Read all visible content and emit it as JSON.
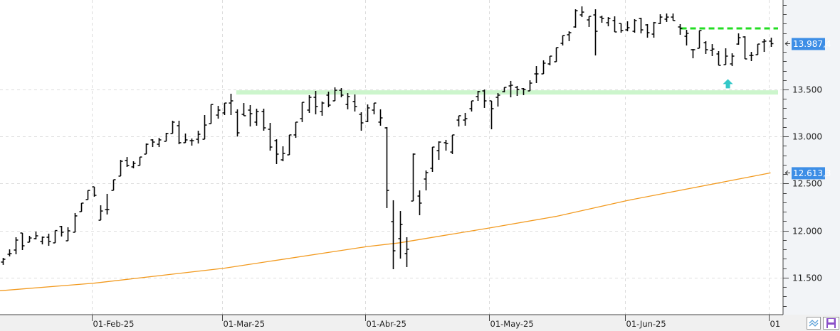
{
  "chart_data": {
    "type": "ohlc",
    "title": "",
    "xlabel": "",
    "ylabel": "",
    "ylim": [
      11200,
      14450
    ],
    "grid": true,
    "x_tick_labels": [
      "01-Feb-25",
      "01-Mar-25",
      "01-Abr-25",
      "01-May-25",
      "01-Jun-25",
      "01"
    ],
    "x_tick_bar_index": [
      15,
      35,
      57,
      76,
      97,
      119
    ],
    "y_ticks": [
      11500,
      12000,
      12500,
      13000,
      13500
    ],
    "y_tick_labels": [
      "11.500",
      "12.000",
      "12.500",
      "13.000",
      "13.500"
    ],
    "bars": [
      [
        11665,
        11710,
        11635,
        11695
      ],
      [
        11748,
        11800,
        11725,
        11755
      ],
      [
        11793,
        11929,
        11748,
        11899
      ],
      [
        11974,
        11974,
        11793,
        11838
      ],
      [
        11876,
        11944,
        11876,
        11921
      ],
      [
        11914,
        11989,
        11906,
        11944
      ],
      [
        11884,
        11937,
        11853,
        11929
      ],
      [
        11929,
        11967,
        11838,
        11884
      ],
      [
        11869,
        12000,
        11869,
        12000
      ],
      [
        12042,
        12050,
        11937,
        11982
      ],
      [
        11891,
        12035,
        11891,
        11997
      ],
      [
        11982,
        12186,
        11982,
        12156
      ],
      [
        12201,
        12292,
        12201,
        12292
      ],
      [
        12329,
        12427,
        12329,
        12427
      ],
      [
        12465,
        12465,
        12360,
        12375
      ],
      [
        12110,
        12269,
        12110,
        12208
      ],
      [
        12223,
        12390,
        12171,
        12223
      ],
      [
        12427,
        12541,
        12427,
        12541
      ],
      [
        12579,
        12752,
        12579,
        12737
      ],
      [
        12745,
        12782,
        12677,
        12692
      ],
      [
        12677,
        12737,
        12662,
        12714
      ],
      [
        12692,
        12782,
        12692,
        12782
      ],
      [
        12813,
        12926,
        12813,
        12918
      ],
      [
        12964,
        12971,
        12888,
        12941
      ],
      [
        12918,
        12986,
        12888,
        12964
      ],
      [
        12949,
        13039,
        12949,
        13032
      ],
      [
        13032,
        13168,
        13032,
        13153
      ],
      [
        13115,
        13168,
        12918,
        12934
      ],
      [
        12934,
        13032,
        12934,
        12964
      ],
      [
        12956,
        12979,
        12903,
        12956
      ],
      [
        12971,
        13062,
        12926,
        13024
      ],
      [
        12971,
        13228,
        12971,
        13122
      ],
      [
        13137,
        13341,
        13137,
        13341
      ],
      [
        13228,
        13326,
        13190,
        13281
      ],
      [
        13251,
        13356,
        13228,
        13356
      ],
      [
        13356,
        13455,
        13228,
        13379
      ],
      [
        13258,
        13289,
        13000,
        13039
      ],
      [
        13236,
        13356,
        13221,
        13221
      ],
      [
        13281,
        13334,
        13107,
        13243
      ],
      [
        13153,
        13296,
        13115,
        13266
      ],
      [
        13266,
        13296,
        13062,
        13092
      ],
      [
        13077,
        13145,
        12850,
        12888
      ],
      [
        12956,
        12971,
        12707,
        12813
      ],
      [
        12752,
        12896,
        12737,
        12820
      ],
      [
        12805,
        13017,
        12805,
        13017
      ],
      [
        13017,
        13153,
        12986,
        13153
      ],
      [
        13190,
        13364,
        13153,
        13364
      ],
      [
        13281,
        13440,
        13251,
        13417
      ],
      [
        13417,
        13485,
        13236,
        13319
      ],
      [
        13266,
        13372,
        13221,
        13356
      ],
      [
        13440,
        13477,
        13311,
        13334
      ],
      [
        13379,
        13523,
        13379,
        13492
      ],
      [
        13492,
        13515,
        13417,
        13440
      ],
      [
        13341,
        13462,
        13289,
        13425
      ],
      [
        13372,
        13447,
        13266,
        13319
      ],
      [
        13236,
        13258,
        13062,
        13145
      ],
      [
        13160,
        13341,
        13153,
        13304
      ],
      [
        13281,
        13356,
        13236,
        13356
      ],
      [
        13153,
        13289,
        13115,
        13198
      ],
      [
        13092,
        13100,
        12239,
        12427
      ],
      [
        12095,
        12322,
        11589,
        11785
      ],
      [
        11914,
        12208,
        11702,
        12065
      ],
      [
        11755,
        11929,
        11612,
        11801
      ],
      [
        12314,
        12820,
        12314,
        12813
      ],
      [
        12367,
        12427,
        12163,
        12292
      ],
      [
        12548,
        12639,
        12427,
        12616
      ],
      [
        12662,
        12888,
        12624,
        12888
      ],
      [
        12850,
        12949,
        12752,
        12941
      ],
      [
        12934,
        12964,
        12850,
        12926
      ],
      [
        12835,
        13017,
        12813,
        13017
      ],
      [
        13175,
        13221,
        13107,
        13221
      ],
      [
        13175,
        13251,
        13115,
        13190
      ],
      [
        13296,
        13379,
        13266,
        13379
      ],
      [
        13425,
        13485,
        13379,
        13477
      ],
      [
        13485,
        13500,
        13304,
        13379
      ],
      [
        13379,
        13379,
        13077,
        13296
      ],
      [
        13417,
        13462,
        13319,
        13440
      ],
      [
        13477,
        13523,
        13470,
        13523
      ],
      [
        13538,
        13591,
        13417,
        13545
      ],
      [
        13523,
        13538,
        13432,
        13500
      ],
      [
        13508,
        13515,
        13440,
        13500
      ],
      [
        13485,
        13598,
        13485,
        13568
      ],
      [
        13666,
        13749,
        13568,
        13666
      ],
      [
        13666,
        13810,
        13666,
        13780
      ],
      [
        13772,
        13855,
        13757,
        13855
      ],
      [
        13795,
        13946,
        13795,
        13946
      ],
      [
        13991,
        14074,
        13968,
        14074
      ],
      [
        14082,
        14119,
        14014,
        14104
      ],
      [
        14165,
        14353,
        14157,
        14338
      ],
      [
        14293,
        14384,
        14270,
        14323
      ],
      [
        14240,
        14278,
        14165,
        14278
      ],
      [
        14293,
        14353,
        13862,
        14119
      ],
      [
        14270,
        14285,
        14210,
        14255
      ],
      [
        14210,
        14270,
        14172,
        14255
      ],
      [
        14233,
        14278,
        14112,
        14112
      ],
      [
        14202,
        14202,
        14104,
        14127
      ],
      [
        14134,
        14225,
        14119,
        14157
      ],
      [
        14119,
        14248,
        14104,
        14233
      ],
      [
        14255,
        14263,
        14097,
        14134
      ],
      [
        14187,
        14195,
        14051,
        14104
      ],
      [
        14089,
        14218,
        14051,
        14210
      ],
      [
        14202,
        14300,
        14195,
        14270
      ],
      [
        14248,
        14308,
        14218,
        14270
      ],
      [
        14270,
        14308,
        14233,
        14233
      ],
      [
        14165,
        14195,
        14082,
        14150
      ],
      [
        14066,
        14134,
        13968,
        14097
      ],
      [
        13923,
        13930,
        13832,
        13923
      ],
      [
        13938,
        14127,
        13938,
        14127
      ],
      [
        13998,
        14014,
        13878,
        13923
      ],
      [
        13915,
        13983,
        13855,
        13930
      ],
      [
        13878,
        13908,
        13757,
        13757
      ],
      [
        13764,
        13938,
        13764,
        13855
      ],
      [
        13772,
        13885,
        13749,
        13855
      ],
      [
        13983,
        14097,
        13976,
        14051
      ],
      [
        14059,
        14066,
        13825,
        13825
      ],
      [
        13862,
        13900,
        13802,
        13862
      ],
      [
        13870,
        13983,
        13870,
        13983
      ],
      [
        14006,
        14036,
        13900,
        14014
      ],
      [
        14014,
        14051,
        13953,
        13987.4
      ]
    ],
    "bar_fields": [
      "open",
      "high",
      "low",
      "close"
    ],
    "moving_average": {
      "color": "#f29a1f",
      "bar_index": [
        1,
        15,
        35,
        57,
        62,
        76,
        86,
        97,
        119
      ],
      "values": [
        11360,
        11440,
        11600,
        11830,
        11870,
        12030,
        12150,
        12320,
        12613.3
      ]
    },
    "support_zone": {
      "value": 13465,
      "from_bar": 36,
      "color": "#ccf5cc"
    },
    "resistance_line": {
      "value": 14150,
      "from_bar": 105,
      "color": "#22dd22",
      "style": "dashed"
    },
    "signal_arrow": {
      "bar_index": 112,
      "value": 13550,
      "direction": "up",
      "color": "#33c8c8"
    },
    "price_tags": [
      {
        "label": "13.987,4",
        "value": 13987.4,
        "color": "#3d8ee6"
      },
      {
        "label": "12.613,3",
        "value": 12613.3,
        "color": "#3d8ee6"
      }
    ]
  },
  "toolbar": {
    "buttons": [
      {
        "icon": "indicator-wave-icon"
      },
      {
        "icon": "save-disk-icon"
      }
    ]
  }
}
